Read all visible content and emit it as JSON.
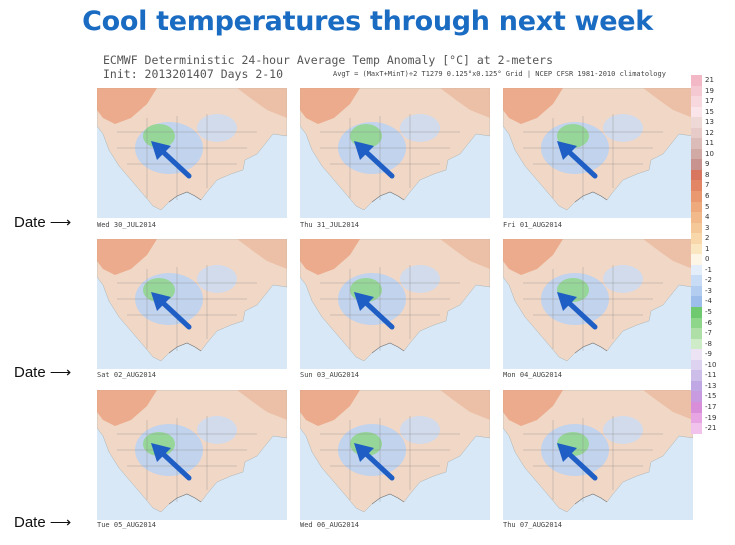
{
  "slide": {
    "title": "Cool temperatures through next week"
  },
  "header": {
    "line1": "ECMWF Deterministic 24-hour Average Temp Anomaly [°C]  at 2-meters",
    "line2": "Init: 2013201407 Days 2-10",
    "meta": "AvgT = (MaxT+MinT)÷2  T1279 0.125°x0.125° Grid | NCEP CFSR 1981-2010 climatology"
  },
  "panels": [
    {
      "date": "Wed 30_JUL2014"
    },
    {
      "date": "Thu 31_JUL2014"
    },
    {
      "date": "Fri 01_AUG2014"
    },
    {
      "date": "Sat 02_AUG2014"
    },
    {
      "date": "Sun 03_AUG2014"
    },
    {
      "date": "Mon 04_AUG2014"
    },
    {
      "date": "Tue 05_AUG2014"
    },
    {
      "date": "Wed 06_AUG2014"
    },
    {
      "date": "Thu 07_AUG2014"
    }
  ],
  "side_labels": [
    "Date",
    "Date",
    "Date"
  ],
  "colorbar": [
    {
      "label": "21",
      "color": "#f2b8c6"
    },
    {
      "label": "19",
      "color": "#f5c9d2"
    },
    {
      "label": "17",
      "color": "#f7d8de"
    },
    {
      "label": "15",
      "color": "#fae6ea"
    },
    {
      "label": "13",
      "color": "#eed9d6"
    },
    {
      "label": "12",
      "color": "#e6cbc8"
    },
    {
      "label": "11",
      "color": "#dcbcb8"
    },
    {
      "label": "10",
      "color": "#d1aaa6"
    },
    {
      "label": "9",
      "color": "#c8938e"
    },
    {
      "label": "8",
      "color": "#d8765f"
    },
    {
      "label": "7",
      "color": "#e28665"
    },
    {
      "label": "6",
      "color": "#ea9870"
    },
    {
      "label": "5",
      "color": "#eea97c"
    },
    {
      "label": "4",
      "color": "#f2b98a"
    },
    {
      "label": "3",
      "color": "#f5c89a"
    },
    {
      "label": "2",
      "color": "#f8d7ab"
    },
    {
      "label": "1",
      "color": "#fbe6c2"
    },
    {
      "label": "0",
      "color": "#fdf5e6"
    },
    {
      "label": "-1",
      "color": "#e3eefa"
    },
    {
      "label": "-2",
      "color": "#c9dcf5"
    },
    {
      "label": "-3",
      "color": "#b3cdf0"
    },
    {
      "label": "-4",
      "color": "#9dbdea"
    },
    {
      "label": "-5",
      "color": "#6fca6f"
    },
    {
      "label": "-6",
      "color": "#8ed68a"
    },
    {
      "label": "-7",
      "color": "#addfa6"
    },
    {
      "label": "-8",
      "color": "#cfecc9"
    },
    {
      "label": "-9",
      "color": "#ece4f5"
    },
    {
      "label": "-10",
      "color": "#ddd2f0"
    },
    {
      "label": "-11",
      "color": "#cdbde9"
    },
    {
      "label": "-13",
      "color": "#bfa8e3"
    },
    {
      "label": "-15",
      "color": "#c89ae0"
    },
    {
      "label": "-17",
      "color": "#d98ed9"
    },
    {
      "label": "-19",
      "color": "#e7a5e4"
    },
    {
      "label": "-21",
      "color": "#f0c2ec"
    }
  ]
}
